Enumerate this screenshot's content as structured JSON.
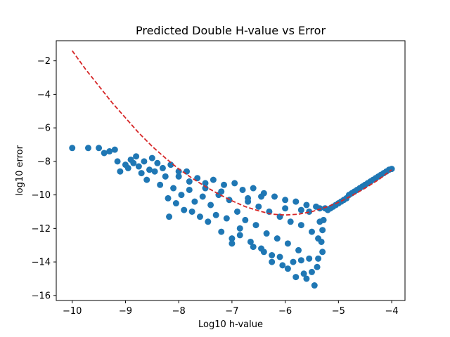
{
  "chart_data": {
    "type": "scatter",
    "title": "Predicted Double H-value vs Error",
    "xlabel": "Log10 h-value",
    "ylabel": "log10 error",
    "xlim": [
      -10.3,
      -3.75
    ],
    "ylim": [
      -16.3,
      -0.8
    ],
    "x_ticks": [
      -10,
      -9,
      -8,
      -7,
      -6,
      -5,
      -4
    ],
    "y_ticks": [
      -16,
      -14,
      -12,
      -10,
      -8,
      -6,
      -4,
      -2
    ],
    "grid": false,
    "legend": "none",
    "colors": {
      "points": "#1f77b4",
      "prediction": "#d62728"
    },
    "series": [
      {
        "kind": "scatter",
        "color": "#1f77b4",
        "points": [
          [
            -10.0,
            -7.2
          ],
          [
            -9.7,
            -7.2
          ],
          [
            -9.5,
            -7.2
          ],
          [
            -9.4,
            -7.5
          ],
          [
            -9.3,
            -7.4
          ],
          [
            -9.2,
            -7.3
          ],
          [
            -9.15,
            -8.0
          ],
          [
            -9.1,
            -8.6
          ],
          [
            -9.0,
            -8.2
          ],
          [
            -8.95,
            -8.4
          ],
          [
            -8.9,
            -7.9
          ],
          [
            -8.85,
            -8.1
          ],
          [
            -8.8,
            -7.7
          ],
          [
            -8.75,
            -8.3
          ],
          [
            -8.7,
            -8.7
          ],
          [
            -8.65,
            -8.0
          ],
          [
            -8.6,
            -9.1
          ],
          [
            -8.55,
            -8.5
          ],
          [
            -8.5,
            -7.8
          ],
          [
            -8.45,
            -8.6
          ],
          [
            -8.4,
            -8.1
          ],
          [
            -8.35,
            -9.4
          ],
          [
            -8.3,
            -8.4
          ],
          [
            -8.25,
            -8.9
          ],
          [
            -8.2,
            -10.2
          ],
          [
            -8.18,
            -11.3
          ],
          [
            -8.15,
            -8.2
          ],
          [
            -8.1,
            -9.6
          ],
          [
            -8.05,
            -10.5
          ],
          [
            -8.0,
            -8.9
          ],
          [
            -7.95,
            -10.0
          ],
          [
            -7.9,
            -10.9
          ],
          [
            -7.85,
            -8.6
          ],
          [
            -7.8,
            -9.7
          ],
          [
            -7.75,
            -11.0
          ],
          [
            -7.7,
            -10.4
          ],
          [
            -7.65,
            -9.0
          ],
          [
            -7.6,
            -11.3
          ],
          [
            -7.55,
            -10.1
          ],
          [
            -7.5,
            -9.3
          ],
          [
            -7.45,
            -11.6
          ],
          [
            -7.4,
            -10.6
          ],
          [
            -7.35,
            -9.1
          ],
          [
            -7.3,
            -11.2
          ],
          [
            -7.25,
            -10.0
          ],
          [
            -7.2,
            -12.2
          ],
          [
            -7.15,
            -9.4
          ],
          [
            -7.1,
            -11.4
          ],
          [
            -7.05,
            -10.3
          ],
          [
            -7.0,
            -12.6
          ],
          [
            -6.95,
            -9.3
          ],
          [
            -6.9,
            -11.0
          ],
          [
            -6.85,
            -12.0
          ],
          [
            -6.8,
            -9.7
          ],
          [
            -6.75,
            -11.5
          ],
          [
            -6.7,
            -10.4
          ],
          [
            -6.65,
            -12.8
          ],
          [
            -6.6,
            -9.6
          ],
          [
            -6.55,
            -11.8
          ],
          [
            -6.5,
            -10.7
          ],
          [
            -6.45,
            -13.2
          ],
          [
            -6.4,
            -9.9
          ],
          [
            -6.35,
            -12.3
          ],
          [
            -6.3,
            -11.0
          ],
          [
            -6.25,
            -13.6
          ],
          [
            -6.2,
            -10.1
          ],
          [
            -6.15,
            -12.6
          ],
          [
            -6.1,
            -11.3
          ],
          [
            -6.05,
            -14.2
          ],
          [
            -6.0,
            -10.3
          ],
          [
            -5.95,
            -12.9
          ],
          [
            -5.9,
            -11.6
          ],
          [
            -5.85,
            -14.0
          ],
          [
            -5.8,
            -10.4
          ],
          [
            -5.75,
            -13.3
          ],
          [
            -5.7,
            -11.8
          ],
          [
            -5.65,
            -14.7
          ],
          [
            -5.6,
            -10.6
          ],
          [
            -5.55,
            -13.8
          ],
          [
            -5.5,
            -12.2
          ],
          [
            -5.45,
            -15.4
          ],
          [
            -5.42,
            -10.7
          ],
          [
            -5.4,
            -14.3
          ],
          [
            -5.38,
            -12.6
          ],
          [
            -5.35,
            -10.8
          ],
          [
            -5.3,
            -13.4
          ],
          [
            -5.28,
            -11.5
          ],
          [
            -5.25,
            -10.8
          ],
          [
            -5.2,
            -10.9
          ],
          [
            -5.15,
            -10.8
          ],
          [
            -5.1,
            -10.7
          ],
          [
            -5.05,
            -10.6
          ],
          [
            -5.0,
            -10.5
          ],
          [
            -4.95,
            -10.4
          ],
          [
            -4.9,
            -10.3
          ],
          [
            -4.85,
            -10.2
          ],
          [
            -4.8,
            -10.0
          ],
          [
            -4.75,
            -9.9
          ],
          [
            -4.7,
            -9.8
          ],
          [
            -4.65,
            -9.7
          ],
          [
            -4.6,
            -9.6
          ],
          [
            -4.55,
            -9.5
          ],
          [
            -4.5,
            -9.4
          ],
          [
            -4.45,
            -9.3
          ],
          [
            -4.4,
            -9.2
          ],
          [
            -4.35,
            -9.1
          ],
          [
            -4.3,
            -9.0
          ],
          [
            -4.25,
            -8.9
          ],
          [
            -4.2,
            -8.8
          ],
          [
            -4.15,
            -8.7
          ],
          [
            -4.1,
            -8.6
          ],
          [
            -4.05,
            -8.5
          ],
          [
            -4.0,
            -8.45
          ],
          [
            -6.25,
            -14.0
          ],
          [
            -5.95,
            -14.4
          ],
          [
            -5.7,
            -13.9
          ],
          [
            -6.6,
            -13.1
          ],
          [
            -7.0,
            -12.9
          ],
          [
            -6.85,
            -12.4
          ],
          [
            -6.4,
            -13.4
          ],
          [
            -6.1,
            -13.7
          ],
          [
            -5.8,
            -14.9
          ],
          [
            -5.6,
            -15.0
          ],
          [
            -5.5,
            -14.6
          ],
          [
            -6.45,
            -10.1
          ],
          [
            -6.7,
            -10.2
          ],
          [
            -7.2,
            -9.8
          ],
          [
            -7.5,
            -9.6
          ],
          [
            -7.8,
            -9.2
          ],
          [
            -8.0,
            -8.6
          ],
          [
            -6.0,
            -10.8
          ],
          [
            -5.7,
            -10.9
          ],
          [
            -5.55,
            -11.0
          ],
          [
            -5.35,
            -11.6
          ],
          [
            -5.3,
            -12.1
          ],
          [
            -5.32,
            -12.8
          ],
          [
            -5.38,
            -13.8
          ]
        ]
      },
      {
        "kind": "line",
        "style": "dashed",
        "color": "#d62728",
        "x": [
          -10.0,
          -9.75,
          -9.5,
          -9.25,
          -9.0,
          -8.75,
          -8.5,
          -8.25,
          -8.0,
          -7.75,
          -7.5,
          -7.25,
          -7.0,
          -6.75,
          -6.5,
          -6.25,
          -6.0,
          -5.75,
          -5.5,
          -5.25,
          -5.0,
          -4.75,
          -4.5,
          -4.25,
          -4.0
        ],
        "y": [
          -1.4,
          -2.5,
          -3.5,
          -4.5,
          -5.4,
          -6.3,
          -7.1,
          -7.8,
          -8.45,
          -9.0,
          -9.5,
          -9.95,
          -10.35,
          -10.7,
          -10.95,
          -11.15,
          -11.2,
          -11.15,
          -11.0,
          -10.75,
          -10.45,
          -10.05,
          -9.6,
          -9.1,
          -8.5
        ]
      }
    ]
  }
}
